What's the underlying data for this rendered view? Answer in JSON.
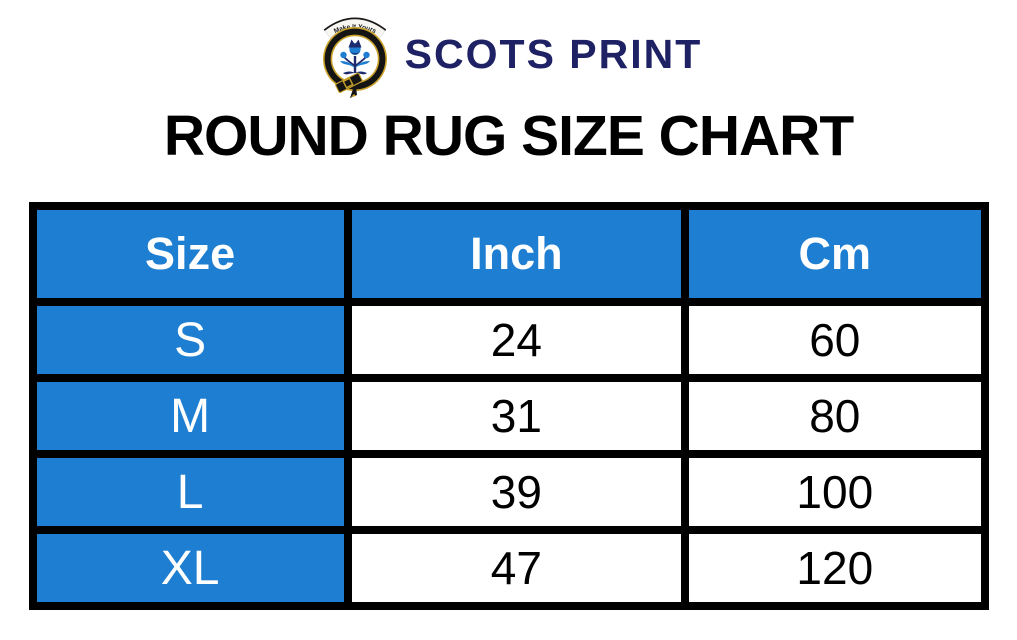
{
  "brand": {
    "name": "SCOTS PRINT",
    "crest_banner_text": "Make It Yours"
  },
  "title": "ROUND RUG SIZE CHART",
  "colors": {
    "header_blue": "#1e7fd2",
    "brand_navy": "#1e2163",
    "border_black": "#000000",
    "crest_gold": "#c9a22c",
    "thistle_blue": "#1e7fd2",
    "thistle_navy": "#1d2a6b"
  },
  "chart_data": {
    "type": "table",
    "title": "ROUND RUG SIZE CHART",
    "columns": [
      "Size",
      "Inch",
      "Cm"
    ],
    "rows": [
      [
        "S",
        "24",
        "60"
      ],
      [
        "M",
        "31",
        "80"
      ],
      [
        "L",
        "39",
        "100"
      ],
      [
        "XL",
        "47",
        "120"
      ]
    ]
  }
}
